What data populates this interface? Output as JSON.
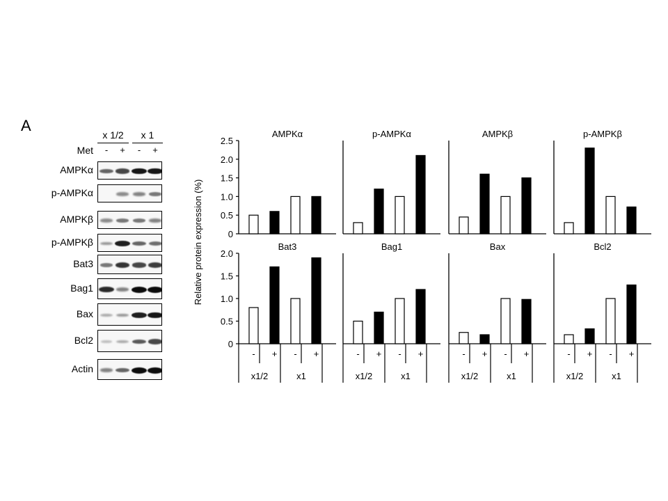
{
  "panel_label": "A",
  "blot": {
    "groups": [
      "x 1/2",
      "x 1"
    ],
    "treatment_label": "Met",
    "signs": [
      "-",
      "+",
      "-",
      "+"
    ],
    "rows": [
      {
        "label": "AMPKα",
        "bands": [
          0.55,
          0.7,
          0.95,
          0.95
        ]
      },
      {
        "label": "p-AMPKα",
        "bands": [
          0.0,
          0.35,
          0.4,
          0.45
        ]
      },
      {
        "label": "AMPKβ",
        "bands": [
          0.35,
          0.45,
          0.45,
          0.4
        ]
      },
      {
        "label": "p-AMPKβ",
        "bands": [
          0.3,
          0.9,
          0.55,
          0.5
        ]
      },
      {
        "label": "Bat3",
        "bands": [
          0.45,
          0.8,
          0.7,
          0.75
        ]
      },
      {
        "label": "Bag1",
        "bands": [
          0.85,
          0.4,
          1.0,
          1.0
        ]
      },
      {
        "label": "Bax",
        "bands": [
          0.2,
          0.3,
          0.9,
          0.95
        ]
      },
      {
        "label": "Bcl2",
        "bands": [
          0.1,
          0.2,
          0.6,
          0.7
        ]
      },
      {
        "label": "Actin",
        "bands": [
          0.4,
          0.55,
          1.0,
          1.0
        ]
      }
    ]
  },
  "chart_data": [
    {
      "type": "bar",
      "title": "AMPKα",
      "categories": [
        "-",
        "+",
        "-",
        "+"
      ],
      "groups": [
        "x1/2",
        "x1"
      ],
      "values": [
        0.5,
        0.6,
        1.0,
        1.0
      ],
      "ylim": [
        0,
        2.5
      ],
      "yticks": [
        "0",
        "0.5",
        "1.0",
        "1.5",
        "2.0",
        "2.5"
      ],
      "ylabel": "Relative protein expression (%)"
    },
    {
      "type": "bar",
      "title": "p-AMPKα",
      "categories": [
        "-",
        "+",
        "-",
        "+"
      ],
      "groups": [
        "x1/2",
        "x1"
      ],
      "values": [
        0.3,
        1.2,
        1.0,
        2.1
      ],
      "ylim": [
        0,
        2.5
      ]
    },
    {
      "type": "bar",
      "title": "AMPKβ",
      "categories": [
        "-",
        "+",
        "-",
        "+"
      ],
      "groups": [
        "x1/2",
        "x1"
      ],
      "values": [
        0.45,
        1.6,
        1.0,
        1.5
      ],
      "ylim": [
        0,
        2.5
      ]
    },
    {
      "type": "bar",
      "title": "p-AMPKβ",
      "categories": [
        "-",
        "+",
        "-",
        "+"
      ],
      "groups": [
        "x1/2",
        "x1"
      ],
      "values": [
        0.3,
        2.3,
        1.0,
        0.72
      ],
      "ylim": [
        0,
        2.5
      ]
    },
    {
      "type": "bar",
      "title": "Bat3",
      "categories": [
        "-",
        "+",
        "-",
        "+"
      ],
      "groups": [
        "x1/2",
        "x1"
      ],
      "values": [
        0.8,
        1.7,
        1.0,
        1.9
      ],
      "ylim": [
        0,
        2.0
      ],
      "yticks": [
        "0",
        "0.5",
        "1.0",
        "1.5",
        "2.0"
      ]
    },
    {
      "type": "bar",
      "title": "Bag1",
      "categories": [
        "-",
        "+",
        "-",
        "+"
      ],
      "groups": [
        "x1/2",
        "x1"
      ],
      "values": [
        0.5,
        0.7,
        1.0,
        1.2
      ],
      "ylim": [
        0,
        2.0
      ]
    },
    {
      "type": "bar",
      "title": "Bax",
      "categories": [
        "-",
        "+",
        "-",
        "+"
      ],
      "groups": [
        "x1/2",
        "x1"
      ],
      "values": [
        0.25,
        0.2,
        1.0,
        0.98
      ],
      "ylim": [
        0,
        2.0
      ]
    },
    {
      "type": "bar",
      "title": "Bcl2",
      "categories": [
        "-",
        "+",
        "-",
        "+"
      ],
      "groups": [
        "x1/2",
        "x1"
      ],
      "values": [
        0.2,
        0.33,
        1.0,
        1.3
      ],
      "ylim": [
        0,
        2.0
      ]
    }
  ],
  "colors": {
    "untreated_bar": "#ffffff",
    "treated_bar": "#000000",
    "axis": "#000000"
  }
}
